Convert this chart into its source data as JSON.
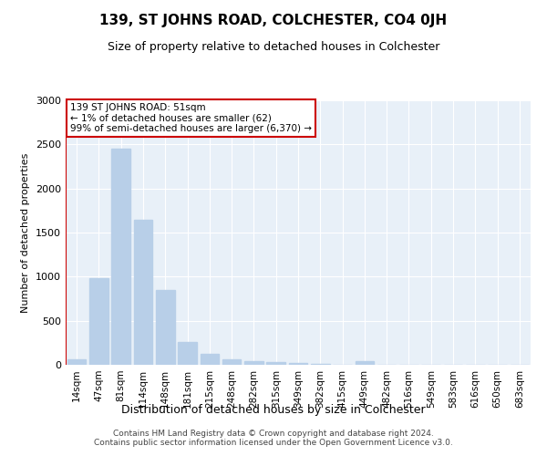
{
  "title": "139, ST JOHNS ROAD, COLCHESTER, CO4 0JH",
  "subtitle": "Size of property relative to detached houses in Colchester",
  "xlabel": "Distribution of detached houses by size in Colchester",
  "ylabel": "Number of detached properties",
  "categories": [
    "14sqm",
    "47sqm",
    "81sqm",
    "114sqm",
    "148sqm",
    "181sqm",
    "215sqm",
    "248sqm",
    "282sqm",
    "315sqm",
    "349sqm",
    "382sqm",
    "415sqm",
    "449sqm",
    "482sqm",
    "516sqm",
    "549sqm",
    "583sqm",
    "616sqm",
    "650sqm",
    "683sqm"
  ],
  "values": [
    62,
    980,
    2450,
    1650,
    850,
    260,
    120,
    65,
    45,
    35,
    20,
    10,
    5,
    45,
    5,
    0,
    0,
    0,
    0,
    0,
    0
  ],
  "bar_color": "#b8cfe8",
  "annotation_text": "139 ST JOHNS ROAD: 51sqm\n← 1% of detached houses are smaller (62)\n99% of semi-detached houses are larger (6,370) →",
  "annotation_box_color": "#ffffff",
  "annotation_box_edgecolor": "#cc0000",
  "vline_color": "#cc0000",
  "background_color": "#e8f0f8",
  "footer_text": "Contains HM Land Registry data © Crown copyright and database right 2024.\nContains public sector information licensed under the Open Government Licence v3.0.",
  "ylim": [
    0,
    3000
  ],
  "yticks": [
    0,
    500,
    1000,
    1500,
    2000,
    2500,
    3000
  ],
  "title_fontsize": 11,
  "subtitle_fontsize": 9,
  "ylabel_fontsize": 8,
  "xlabel_fontsize": 9
}
